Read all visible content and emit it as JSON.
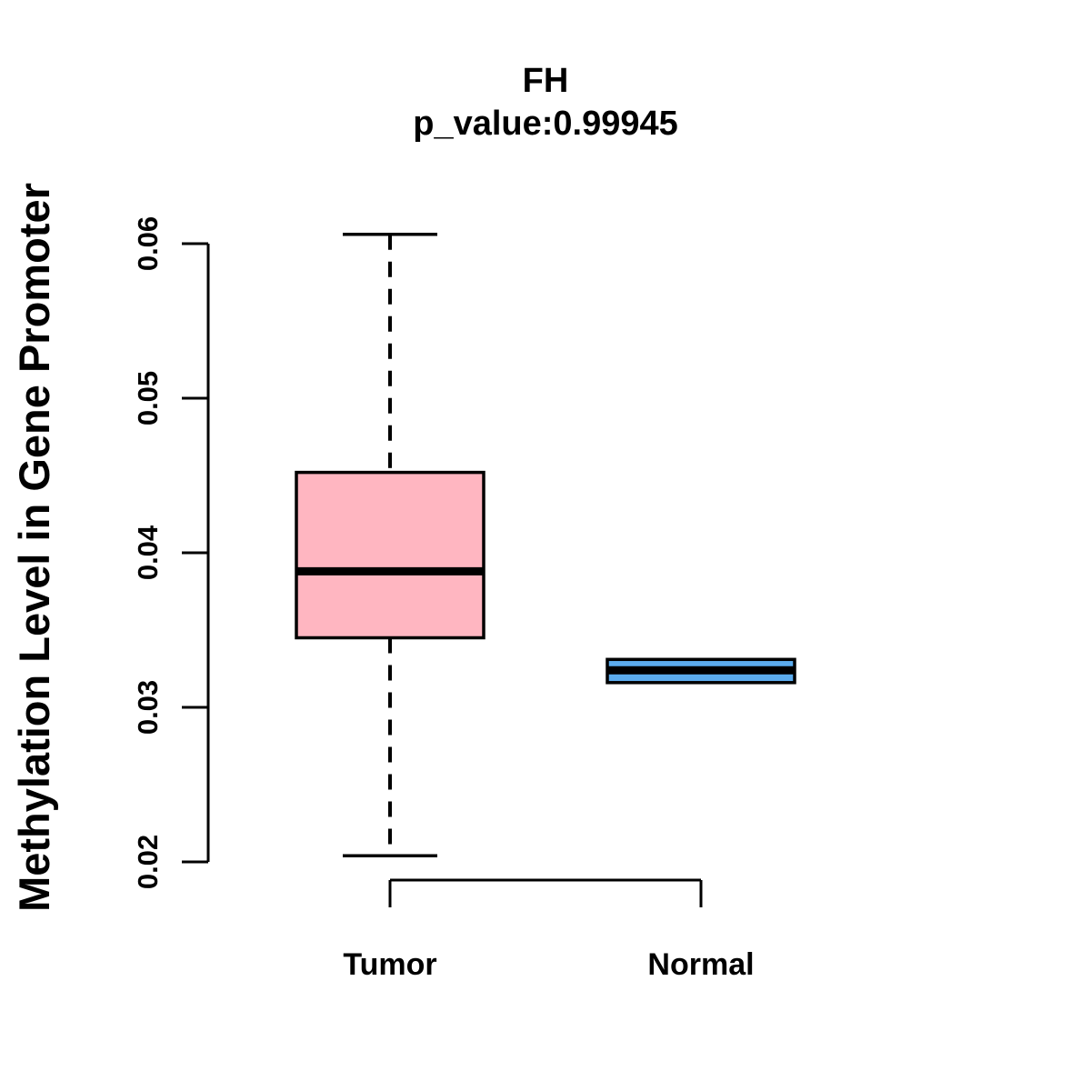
{
  "header": {
    "title": "FH",
    "subtitle": "p_value:0.99945"
  },
  "colors": {
    "tumor_box": "#FFB6C1",
    "normal_box": "#5CACEE",
    "line": "#000000",
    "background": "#FFFFFF"
  },
  "chart_data": {
    "type": "boxplot",
    "title": "FH",
    "subtitle": "p_value:0.99945",
    "xlabel": "",
    "ylabel": "Methylation Level in Gene Promoter",
    "ylim": [
      0.02,
      0.06
    ],
    "ytick_values": [
      0.02,
      0.03,
      0.04,
      0.05,
      0.06
    ],
    "ytick_labels": [
      "0.02",
      "0.03",
      "0.04",
      "0.05",
      "0.06"
    ],
    "grid": false,
    "legend": "none",
    "categories": [
      "Tumor",
      "Normal"
    ],
    "series": [
      {
        "name": "Tumor",
        "box_color": "#FFB6C1",
        "border_color": "#000000",
        "whisker_style": "dashed",
        "whisker_low": 0.0204,
        "q1": 0.0345,
        "median": 0.0388,
        "q3": 0.0452,
        "whisker_high": 0.0606
      },
      {
        "name": "Normal",
        "box_color": "#5CACEE",
        "border_color": "#000000",
        "whisker_style": "dashed",
        "whisker_low": 0.0315,
        "q1": 0.0316,
        "median": 0.0324,
        "q3": 0.0331,
        "whisker_high": 0.0332
      }
    ]
  }
}
